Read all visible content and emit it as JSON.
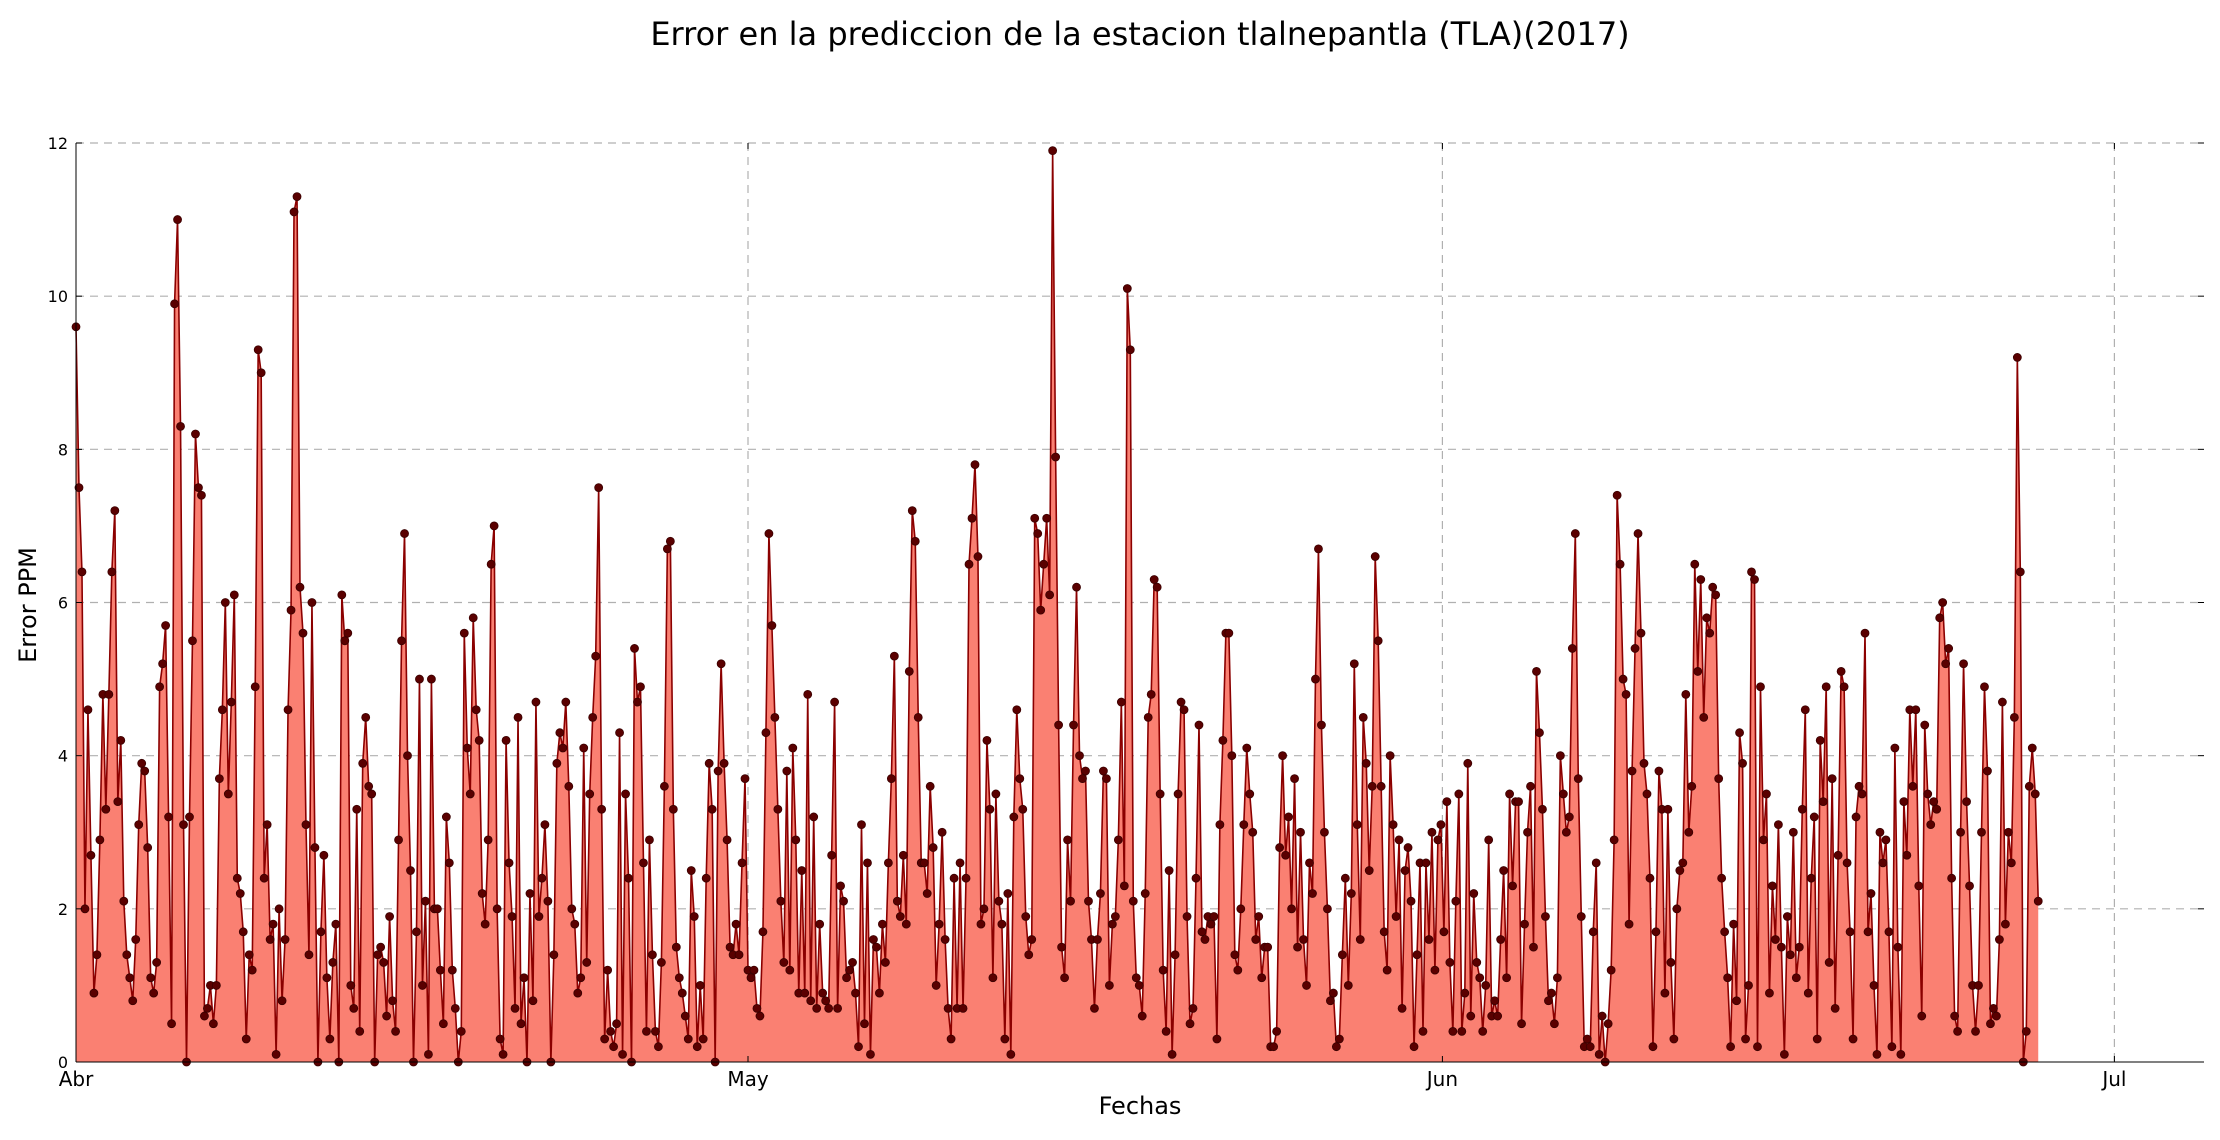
{
  "chart_data": {
    "type": "area",
    "title": "Error en la prediccion de la estacion tlalnepantla (TLA)(2017)",
    "xlabel": "Fechas",
    "ylabel": "Error PPM",
    "ylim": [
      0,
      12
    ],
    "yticks": [
      0,
      2,
      4,
      6,
      8,
      10,
      12
    ],
    "xlim": [
      "2017-04-01T00:00",
      "2017-07-05T00:00"
    ],
    "xticks": [
      {
        "label": "Abr",
        "date": "2017-04-01"
      },
      {
        "label": "May",
        "date": "2017-05-01"
      },
      {
        "label": "Jun",
        "date": "2017-06-01"
      },
      {
        "label": "Jul",
        "date": "2017-07-01"
      }
    ],
    "grid": true,
    "series": [
      {
        "fill_color": "#fa8072",
        "line_color": "#8b0000",
        "marker_color": "#5a0000",
        "start": "2017-04-01T00:00",
        "interval_hours": 3.2,
        "values": [
          9.6,
          7.5,
          6.4,
          2.0,
          4.6,
          2.7,
          0.9,
          1.4,
          2.9,
          4.8,
          3.3,
          4.8,
          6.4,
          7.2,
          3.4,
          4.2,
          2.1,
          1.4,
          1.1,
          0.8,
          1.6,
          3.1,
          3.9,
          3.8,
          2.8,
          1.1,
          0.9,
          1.3,
          4.9,
          5.2,
          5.7,
          3.2,
          0.5,
          9.9,
          11.0,
          8.3,
          3.1,
          0.0,
          3.2,
          5.5,
          8.2,
          7.5,
          7.4,
          0.6,
          0.7,
          1.0,
          0.5,
          1.0,
          3.7,
          4.6,
          6.0,
          3.5,
          4.7,
          6.1,
          2.4,
          2.2,
          1.7,
          0.3,
          1.4,
          1.2,
          4.9,
          9.3,
          9.0,
          2.4,
          3.1,
          1.6,
          1.8,
          0.1,
          2.0,
          0.8,
          1.6,
          4.6,
          5.9,
          11.1,
          11.3,
          6.2,
          5.6,
          3.1,
          1.4,
          6.0,
          2.8,
          0.0,
          1.7,
          2.7,
          1.1,
          0.3,
          1.3,
          1.8,
          0.0,
          6.1,
          5.5,
          5.6,
          1.0,
          0.7,
          3.3,
          0.4,
          3.9,
          4.5,
          3.6,
          3.5,
          0.0,
          1.4,
          1.5,
          1.3,
          0.6,
          1.9,
          0.8,
          0.4,
          2.9,
          5.5,
          6.9,
          4.0,
          2.5,
          0.0,
          1.7,
          5.0,
          1.0,
          2.1,
          0.1,
          5.0,
          2.0,
          2.0,
          1.2,
          0.5,
          3.2,
          2.6,
          1.2,
          0.7,
          0.0,
          0.4,
          5.6,
          4.1,
          3.5,
          5.8,
          4.6,
          4.2,
          2.2,
          1.8,
          2.9,
          6.5,
          7.0,
          2.0,
          0.3,
          0.1,
          4.2,
          2.6,
          1.9,
          0.7,
          4.5,
          0.5,
          1.1,
          0.0,
          2.2,
          0.8,
          4.7,
          1.9,
          2.4,
          3.1,
          2.1,
          0.0,
          1.4,
          3.9,
          4.3,
          4.1,
          4.7,
          3.6,
          2.0,
          1.8,
          0.9,
          1.1,
          4.1,
          1.3,
          3.5,
          4.5,
          5.3,
          7.5,
          3.3,
          0.3,
          1.2,
          0.4,
          0.2,
          0.5,
          4.3,
          0.1,
          3.5,
          2.4,
          0.0,
          5.4,
          4.7,
          4.9,
          2.6,
          0.4,
          2.9,
          1.4,
          0.4,
          0.2,
          1.3,
          3.6,
          6.7,
          6.8,
          3.3,
          1.5,
          1.1,
          0.9,
          0.6,
          0.3,
          2.5,
          1.9,
          0.2,
          1.0,
          0.3,
          2.4,
          3.9,
          3.3,
          0.0,
          3.8,
          5.2,
          3.9,
          2.9,
          1.5,
          1.4,
          1.8,
          1.4,
          2.6,
          3.7,
          1.2,
          1.1,
          1.2,
          0.7,
          0.6,
          1.7,
          4.3,
          6.9,
          5.7,
          4.5,
          3.3,
          2.1,
          1.3,
          3.8,
          1.2,
          4.1,
          2.9,
          0.9,
          2.5,
          0.9,
          4.8,
          0.8,
          3.2,
          0.7,
          1.8,
          0.9,
          0.8,
          0.7,
          2.7,
          4.7,
          0.7,
          2.3,
          2.1,
          1.1,
          1.2,
          1.3,
          0.9,
          0.2,
          3.1,
          0.5,
          2.6,
          0.1,
          1.6,
          1.5,
          0.9,
          1.8,
          1.3,
          2.6,
          3.7,
          5.3,
          2.1,
          1.9,
          2.7,
          1.8,
          5.1,
          7.2,
          6.8,
          4.5,
          2.6,
          2.6,
          2.2,
          3.6,
          2.8,
          1.0,
          1.8,
          3.0,
          1.6,
          0.7,
          0.3,
          2.4,
          0.7,
          2.6,
          0.7,
          2.4,
          6.5,
          7.1,
          7.8,
          6.6,
          1.8,
          2.0,
          4.2,
          3.3,
          1.1,
          3.5,
          2.1,
          1.8,
          0.3,
          2.2,
          0.1,
          3.2,
          4.6,
          3.7,
          3.3,
          1.9,
          1.4,
          1.6,
          7.1,
          6.9,
          5.9,
          6.5,
          7.1,
          6.1,
          11.9,
          7.9,
          4.4,
          1.5,
          1.1,
          2.9,
          2.1,
          4.4,
          6.2,
          4.0,
          3.7,
          3.8,
          2.1,
          1.6,
          0.7,
          1.6,
          2.2,
          3.8,
          3.7,
          1.0,
          1.8,
          1.9,
          2.9,
          4.7,
          2.3,
          10.1,
          9.3,
          2.1,
          1.1,
          1.0,
          0.6,
          2.2,
          4.5,
          4.8,
          6.3,
          6.2,
          3.5,
          1.2,
          0.4,
          2.5,
          0.1,
          1.4,
          3.5,
          4.7,
          4.6,
          1.9,
          0.5,
          0.7,
          2.4,
          4.4,
          1.7,
          1.6,
          1.9,
          1.8,
          1.9,
          0.3,
          3.1,
          4.2,
          5.6,
          5.6,
          4.0,
          1.4,
          1.2,
          2.0,
          3.1,
          4.1,
          3.5,
          3.0,
          1.6,
          1.9,
          1.1,
          1.5,
          1.5,
          0.2,
          0.2,
          0.4,
          2.8,
          4.0,
          2.7,
          3.2,
          2.0,
          3.7,
          1.5,
          3.0,
          1.6,
          1.0,
          2.6,
          2.2,
          5.0,
          6.7,
          4.4,
          3.0,
          2.0,
          0.8,
          0.9,
          0.2,
          0.3,
          1.4,
          2.4,
          1.0,
          2.2,
          5.2,
          3.1,
          1.6,
          4.5,
          3.9,
          2.5,
          3.6,
          6.6,
          5.5,
          3.6,
          1.7,
          1.2,
          4.0,
          3.1,
          1.9,
          2.9,
          0.7,
          2.5,
          2.8,
          2.1,
          0.2,
          1.4,
          2.6,
          0.4,
          2.6,
          1.6,
          3.0,
          1.2,
          2.9,
          3.1,
          1.7,
          3.4,
          1.3,
          0.4,
          2.1,
          3.5,
          0.4,
          0.9,
          3.9,
          0.6,
          2.2,
          1.3,
          1.1,
          0.4,
          1.0,
          2.9,
          0.6,
          0.8,
          0.6,
          1.6,
          2.5,
          1.1,
          3.5,
          2.3,
          3.4,
          3.4,
          0.5,
          1.8,
          3.0,
          3.6,
          1.5,
          5.1,
          4.3,
          3.3,
          1.9,
          0.8,
          0.9,
          0.5,
          1.1,
          4.0,
          3.5,
          3.0,
          3.2,
          5.4,
          6.9,
          3.7,
          1.9,
          0.2,
          0.3,
          0.2,
          1.7,
          2.6,
          0.1,
          0.6,
          0.0,
          0.5,
          1.2,
          2.9,
          7.4,
          6.5,
          5.0,
          4.8,
          1.8,
          3.8,
          5.4,
          6.9,
          5.6,
          3.9,
          3.5,
          2.4,
          0.2,
          1.7,
          3.8,
          3.3,
          0.9,
          3.3,
          1.3,
          0.3,
          2.0,
          2.5,
          2.6,
          4.8,
          3.0,
          3.6,
          6.5,
          5.1,
          6.3,
          4.5,
          5.8,
          5.6,
          6.2,
          6.1,
          3.7,
          2.4,
          1.7,
          1.1,
          0.2,
          1.8,
          0.8,
          4.3,
          3.9,
          0.3,
          1.0,
          6.4,
          6.3,
          0.2,
          4.9,
          2.9,
          3.5,
          0.9,
          2.3,
          1.6,
          3.1,
          1.5,
          0.1,
          1.9,
          1.4,
          3.0,
          1.1,
          1.5,
          3.3,
          4.6,
          0.9,
          2.4,
          3.2,
          0.3,
          4.2,
          3.4,
          4.9,
          1.3,
          3.7,
          0.7,
          2.7,
          5.1,
          4.9,
          2.6,
          1.7,
          0.3,
          3.2,
          3.6,
          3.5,
          5.6,
          1.7,
          2.2,
          1.0,
          0.1,
          3.0,
          2.6,
          2.9,
          1.7,
          0.2,
          4.1,
          1.5,
          0.1,
          3.4,
          2.7,
          4.6,
          3.6,
          4.6,
          2.3,
          0.6,
          4.4,
          3.5,
          3.1,
          3.4,
          3.3,
          5.8,
          6.0,
          5.2,
          5.4,
          2.4,
          0.6,
          0.4,
          3.0,
          5.2,
          3.4,
          2.3,
          1.0,
          0.4,
          1.0,
          3.0,
          4.9,
          3.8,
          0.5,
          0.7,
          0.6,
          1.6,
          4.7,
          1.8,
          3.0,
          2.6,
          4.5,
          9.2,
          6.4,
          0.0,
          0.4,
          3.6,
          4.1,
          3.5,
          2.1
        ]
      }
    ]
  }
}
